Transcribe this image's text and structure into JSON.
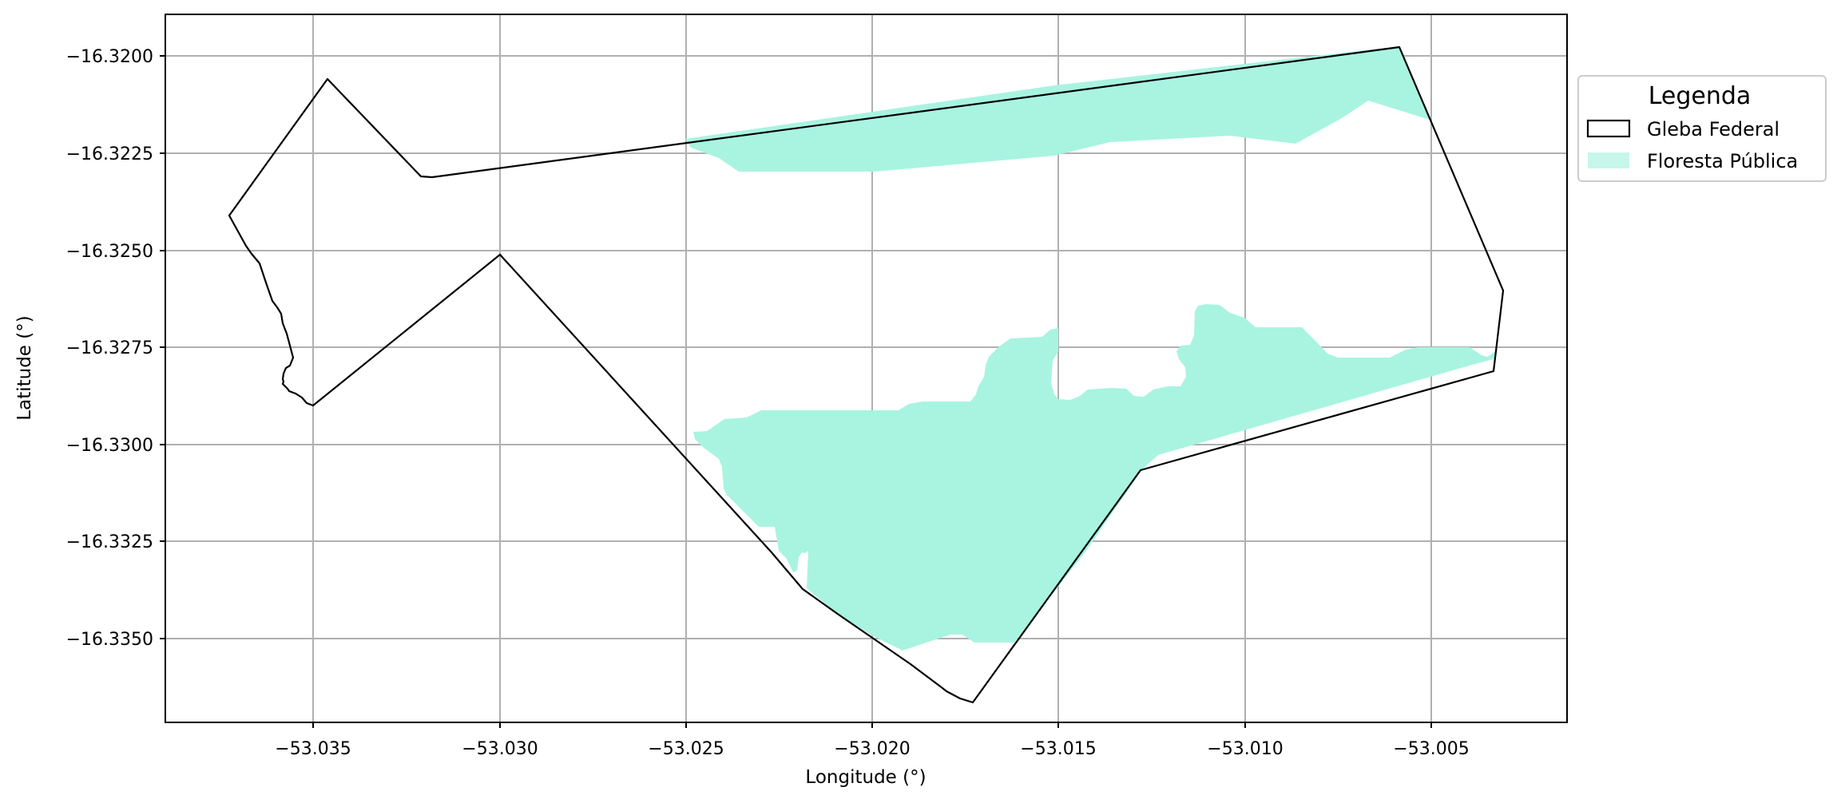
{
  "map": {
    "xlabel": "Longitude (°)",
    "ylabel": "Latitude (°)",
    "x_ticks": [
      "−53.035",
      "−53.030",
      "−53.025",
      "−53.020",
      "−53.015",
      "−53.010",
      "−53.005"
    ],
    "y_ticks": [
      "−16.3200",
      "−16.3225",
      "−16.3250",
      "−16.3275",
      "−16.3300",
      "−16.3325",
      "−16.3350"
    ],
    "legend": {
      "title": "Legenda",
      "items": [
        {
          "label": "Gleba Federal",
          "swatch": "outline",
          "color": "#000000"
        },
        {
          "label": "Floresta Pública",
          "swatch": "fill",
          "color": "#a8f4e1"
        }
      ]
    },
    "colors": {
      "forest_fill": "#a8f4e1",
      "boundary_stroke": "#000000",
      "grid": "#b0b0b0"
    }
  }
}
